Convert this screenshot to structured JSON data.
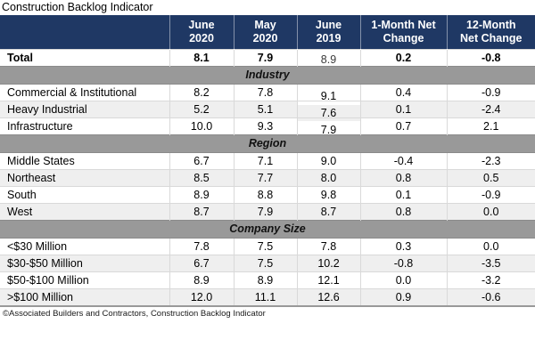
{
  "title": "Construction Backlog Indicator",
  "footer": "©Associated Builders and Contractors, Construction Backlog Indicator",
  "colors": {
    "header_bg": "#1F3864",
    "header_text": "#FFFFFF",
    "section_bg": "#999999",
    "alt_row_bg": "#EFEFEF",
    "grid": "#D9D9D9",
    "section_border": "#8A8A8A",
    "bottom": "#999999"
  },
  "table": {
    "columns": [
      "",
      "June\n2020",
      "May\n2020",
      "June\n2019",
      "1-Month Net\nChange",
      "12-Month\nNet Change"
    ],
    "total": {
      "label": "Total",
      "values": [
        "8.1",
        "7.9",
        "8.9",
        "0.2",
        "-0.8"
      ]
    },
    "sections": [
      {
        "name": "Industry",
        "rows": [
          {
            "label": "Commercial & Institutional",
            "values": [
              "8.2",
              "7.8",
              "9.1",
              "0.4",
              "-0.9"
            ]
          },
          {
            "label": "Heavy Industrial",
            "values": [
              "5.2",
              "5.1",
              "7.6",
              "0.1",
              "-2.4"
            ]
          },
          {
            "label": "Infrastructure",
            "values": [
              "10.0",
              "9.3",
              "7.9",
              "0.7",
              "2.1"
            ]
          }
        ]
      },
      {
        "name": "Region",
        "rows": [
          {
            "label": "Middle States",
            "values": [
              "6.7",
              "7.1",
              "9.0",
              "-0.4",
              "-2.3"
            ]
          },
          {
            "label": "Northeast",
            "values": [
              "8.5",
              "7.7",
              "8.0",
              "0.8",
              "0.5"
            ]
          },
          {
            "label": "South",
            "values": [
              "8.9",
              "8.8",
              "9.8",
              "0.1",
              "-0.9"
            ]
          },
          {
            "label": "West",
            "values": [
              "8.7",
              "7.9",
              "8.7",
              "0.8",
              "0.0"
            ]
          }
        ]
      },
      {
        "name": "Company Size",
        "rows": [
          {
            "label": "<$30 Million",
            "values": [
              "7.8",
              "7.5",
              "7.8",
              "0.3",
              "0.0"
            ]
          },
          {
            "label": "$30-$50 Million",
            "values": [
              "6.7",
              "7.5",
              "10.2",
              "-0.8",
              "-3.5"
            ]
          },
          {
            "label": "$50-$100 Million",
            "values": [
              "8.9",
              "8.9",
              "12.1",
              "0.0",
              "-3.2"
            ]
          },
          {
            "label": ">$100 Million",
            "values": [
              "12.0",
              "11.1",
              "12.6",
              "0.9",
              "-0.6"
            ]
          }
        ]
      }
    ]
  },
  "chart_data": {
    "type": "table",
    "title": "Construction Backlog Indicator",
    "columns": [
      "",
      "June 2020",
      "May 2020",
      "June 2019",
      "1-Month Net Change",
      "12-Month Net Change"
    ],
    "rows": [
      {
        "section": null,
        "label": "Total",
        "values": [
          8.1,
          7.9,
          8.9,
          0.2,
          -0.8
        ]
      },
      {
        "section": "Industry",
        "label": "Commercial & Institutional",
        "values": [
          8.2,
          7.8,
          9.1,
          0.4,
          -0.9
        ]
      },
      {
        "section": "Industry",
        "label": "Heavy Industrial",
        "values": [
          5.2,
          5.1,
          7.6,
          0.1,
          -2.4
        ]
      },
      {
        "section": "Industry",
        "label": "Infrastructure",
        "values": [
          10.0,
          9.3,
          7.9,
          0.7,
          2.1
        ]
      },
      {
        "section": "Region",
        "label": "Middle States",
        "values": [
          6.7,
          7.1,
          9.0,
          -0.4,
          -2.3
        ]
      },
      {
        "section": "Region",
        "label": "Northeast",
        "values": [
          8.5,
          7.7,
          8.0,
          0.8,
          0.5
        ]
      },
      {
        "section": "Region",
        "label": "South",
        "values": [
          8.9,
          8.8,
          9.8,
          0.1,
          -0.9
        ]
      },
      {
        "section": "Region",
        "label": "West",
        "values": [
          8.7,
          7.9,
          8.7,
          0.8,
          0.0
        ]
      },
      {
        "section": "Company Size",
        "label": "<$30 Million",
        "values": [
          7.8,
          7.5,
          7.8,
          0.3,
          0.0
        ]
      },
      {
        "section": "Company Size",
        "label": "$30-$50 Million",
        "values": [
          6.7,
          7.5,
          10.2,
          -0.8,
          -3.5
        ]
      },
      {
        "section": "Company Size",
        "label": "$50-$100 Million",
        "values": [
          8.9,
          8.9,
          12.1,
          0.0,
          -3.2
        ]
      },
      {
        "section": "Company Size",
        "label": ">$100 Million",
        "values": [
          12.0,
          11.1,
          12.6,
          0.9,
          -0.6
        ]
      }
    ],
    "source": "©Associated Builders and Contractors, Construction Backlog Indicator"
  }
}
